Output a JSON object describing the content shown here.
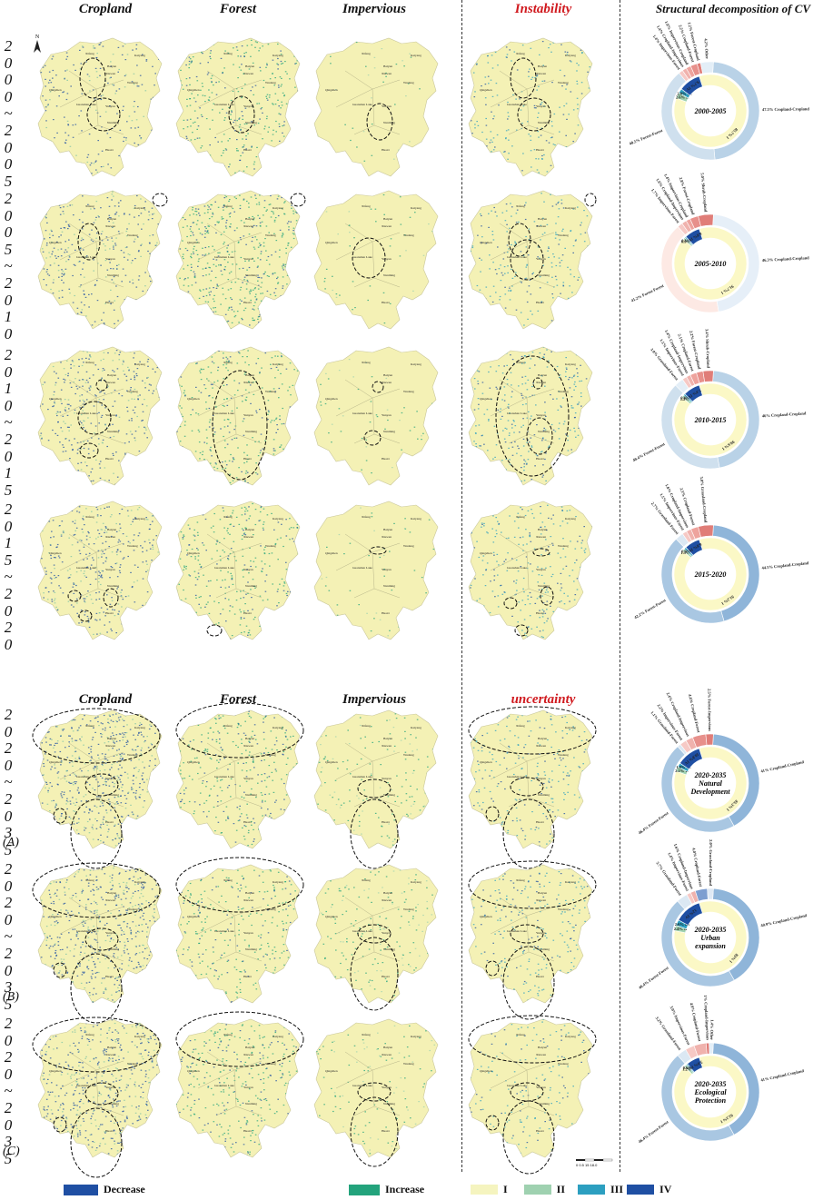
{
  "headers_top": {
    "cropland": "Cropland",
    "forest": "Forest",
    "impervious": "Impervious",
    "instability": "Instability",
    "structural": "Structural  decomposition  of  CV"
  },
  "headers_bottom": {
    "cropland": "Cropland",
    "forest": "Forest",
    "impervious": "Impervious",
    "uncertainty": "uncertainty"
  },
  "row_labels": [
    [
      "2",
      "0",
      "0",
      "0",
      "~",
      "2",
      "0",
      "0",
      "5"
    ],
    [
      "2",
      "0",
      "0",
      "5",
      "~",
      "2",
      "0",
      "1",
      "0"
    ],
    [
      "2",
      "0",
      "1",
      "0",
      "~",
      "2",
      "0",
      "1",
      "5"
    ],
    [
      "2",
      "0",
      "1",
      "5",
      "~",
      "2",
      "0",
      "2",
      "0"
    ],
    [
      "2",
      "0",
      "2",
      "0",
      "~",
      "2",
      "0",
      "3",
      "5"
    ],
    [
      "2",
      "0",
      "2",
      "0",
      "~",
      "2",
      "0",
      "3",
      "5"
    ],
    [
      "2",
      "0",
      "2",
      "0",
      "~",
      "2",
      "0",
      "3",
      "5"
    ]
  ],
  "scenario_letters": [
    "(A)",
    "(B)",
    "(C)"
  ],
  "map_places": [
    "Xifeng",
    "Baiyun",
    "Qingzhen",
    "Wudang",
    "Nanming",
    "Huaxi",
    "Guanshan Lake",
    "Yunyan",
    "Kaiyang",
    "Xiuwen"
  ],
  "north_arrow": "N",
  "scale_bar": "0  0.5  15  18.0",
  "colors": {
    "map_base": "#f4f1b5",
    "cropland_dec": "#1f3f9a",
    "forest_inc": "#23a37c",
    "class_I": "#f5f4bf",
    "class_II": "#9fd1b0",
    "class_III": "#2c9fc0",
    "class_IV": "#1f4fa3",
    "title_red": "#d0191e"
  },
  "donuts": [
    {
      "title": [
        "2000-2005"
      ],
      "outer": [
        {
          "label": "47.5%  Cropland-Cropland",
          "pct": 47.5,
          "color": "#b9d2e7"
        },
        {
          "label": "40.5%  Forest-Forest",
          "pct": 40.5,
          "color": "#cfe0ee"
        },
        {
          "label": "1.4%  Impervious-Forest",
          "pct": 1.4,
          "color": "#f6c9c5"
        },
        {
          "label": "1.4%  Cropland-Impervious",
          "pct": 1.4,
          "color": "#f0b2ad"
        },
        {
          "label": "1.6%  Impervious-Cropland",
          "pct": 1.6,
          "color": "#eea39d"
        },
        {
          "label": "2.2%  Cropland-Forest",
          "pct": 2.2,
          "color": "#e7908b"
        },
        {
          "label": "1.2%  Forest-Cropland",
          "pct": 1.2,
          "color": "#e07d78"
        },
        {
          "label": "4.2%  Other",
          "pct": 4.2,
          "color": "#e3eef7"
        }
      ],
      "inner": [
        {
          "label": "85.7%  I",
          "pct": 85.7,
          "color": "#fbf8c6"
        },
        {
          "label": "2.6%  II",
          "pct": 2.6,
          "color": "#9fd1b0"
        },
        {
          "label": "2.0%  III",
          "pct": 2.0,
          "color": "#2c9fc0"
        },
        {
          "label": "9.7%  IV",
          "pct": 9.7,
          "color": "#1f4fa3"
        }
      ]
    },
    {
      "title": [
        "2005-2010"
      ],
      "outer": [
        {
          "label": "46.3%  Cropland-Cropland",
          "pct": 46.3,
          "color": "#e6eff8"
        },
        {
          "label": "41.2%  Forest-Forest",
          "pct": 41.2,
          "color": "#fde9e4"
        },
        {
          "label": "1.7%  Impervious-Forest",
          "pct": 1.7,
          "color": "#f6c9c5"
        },
        {
          "label": "1.6%  Cropland-Impervious",
          "pct": 1.6,
          "color": "#f0b2ad"
        },
        {
          "label": "1.4%  Impervious-Cropland",
          "pct": 1.4,
          "color": "#eea39d"
        },
        {
          "label": "2.8%  Forest-Cropland",
          "pct": 2.8,
          "color": "#e7908b"
        },
        {
          "label": "5.0%  Shrub-Cropland",
          "pct": 5.0,
          "color": "#e07d78"
        }
      ],
      "inner": [
        {
          "label": "91.7%  I",
          "pct": 91.7,
          "color": "#fbf8c6"
        },
        {
          "label": "0.9%  II",
          "pct": 0.9,
          "color": "#9fd1b0"
        },
        {
          "label": "0.6%  III",
          "pct": 0.6,
          "color": "#2c9fc0"
        },
        {
          "label": "6.8%  IV",
          "pct": 6.8,
          "color": "#1f4fa3"
        }
      ]
    },
    {
      "title": [
        "2010-2015"
      ],
      "outer": [
        {
          "label": "46%  Cropland-Cropland",
          "pct": 46.0,
          "color": "#b9d2e7"
        },
        {
          "label": "40.4%  Forest-Forest",
          "pct": 40.4,
          "color": "#cfe0ee"
        },
        {
          "label": "3.0%  Grassland-Forest",
          "pct": 3.0,
          "color": "#e3eef7"
        },
        {
          "label": "1.5%  Impervious-Forest",
          "pct": 1.5,
          "color": "#f6c9c5"
        },
        {
          "label": "1.4%  Cropland-Impervious",
          "pct": 1.4,
          "color": "#f0b2ad"
        },
        {
          "label": "2.1%  Cropland-Forest",
          "pct": 2.1,
          "color": "#eea39d"
        },
        {
          "label": "2.2%  Forest-Cropland",
          "pct": 2.2,
          "color": "#e7908b"
        },
        {
          "label": "3.4%  Shrub-Cropland",
          "pct": 3.4,
          "color": "#e07d78"
        }
      ],
      "inner": [
        {
          "label": "90.6%  I",
          "pct": 90.6,
          "color": "#fbf8c6"
        },
        {
          "label": "1.2%  II",
          "pct": 1.2,
          "color": "#9fd1b0"
        },
        {
          "label": "0.8%  III",
          "pct": 0.8,
          "color": "#2c9fc0"
        },
        {
          "label": "7.4%  IV",
          "pct": 7.4,
          "color": "#1f4fa3"
        }
      ]
    },
    {
      "title": [
        "2015-2020"
      ],
      "outer": [
        {
          "label": "44.5%  Cropland-Cropland",
          "pct": 44.5,
          "color": "#8fb5d9"
        },
        {
          "label": "42.2%  Forest-Forest",
          "pct": 42.2,
          "color": "#a9c7e2"
        },
        {
          "label": "2.7%  Grassland-Forest",
          "pct": 2.7,
          "color": "#dbe8f3"
        },
        {
          "label": "1.5%  Impervious-Forest",
          "pct": 1.5,
          "color": "#f6c9c5"
        },
        {
          "label": "1.6%  Cropland-Impervious",
          "pct": 1.6,
          "color": "#f0b2ad"
        },
        {
          "label": "2.5%  Cropland-Forest",
          "pct": 2.5,
          "color": "#eea39d"
        },
        {
          "label": "5.0%  Grassland-Cropland",
          "pct": 5.0,
          "color": "#e07d78"
        }
      ],
      "inner": [
        {
          "label": "91.2%  I",
          "pct": 91.2,
          "color": "#fbf8c6"
        },
        {
          "label": "1.1%  II",
          "pct": 1.1,
          "color": "#9fd1b0"
        },
        {
          "label": "0.9%  III",
          "pct": 0.9,
          "color": "#2c9fc0"
        },
        {
          "label": "6.8%  IV",
          "pct": 6.8,
          "color": "#1f4fa3"
        }
      ]
    },
    {
      "title": [
        "2020-2035",
        "Natural",
        "Development"
      ],
      "outer": [
        {
          "label": "41%  Cropland-Cropland",
          "pct": 41.0,
          "color": "#8fb5d9"
        },
        {
          "label": "46.4%  Forest-Forest",
          "pct": 46.4,
          "color": "#a9c7e2"
        },
        {
          "label": "1.1%  Grassland-Forest",
          "pct": 1.1,
          "color": "#dbe8f3"
        },
        {
          "label": "2.2%  Impervious-Forest",
          "pct": 2.2,
          "color": "#f6c9c5"
        },
        {
          "label": "2.4%  Cropland-Impervious",
          "pct": 2.4,
          "color": "#f0b2ad"
        },
        {
          "label": "4.4%  Cropland-Forest",
          "pct": 4.4,
          "color": "#e7908b"
        },
        {
          "label": "2.5%  Forest-Impervious",
          "pct": 2.5,
          "color": "#e07d78"
        }
      ],
      "inner": [
        {
          "label": "85.3%  I",
          "pct": 85.3,
          "color": "#fbf8c6"
        },
        {
          "label": "2.1%  II",
          "pct": 2.1,
          "color": "#9fd1b0"
        },
        {
          "label": "1.8%  III",
          "pct": 1.8,
          "color": "#2c9fc0"
        },
        {
          "label": "10.8%  IV",
          "pct": 10.8,
          "color": "#1f4fa3"
        }
      ]
    },
    {
      "title": [
        "2020-2035",
        "Urban",
        "expansion"
      ],
      "outer": [
        {
          "label": "40.9%  Cropland-Cropland",
          "pct": 40.9,
          "color": "#8fb5d9"
        },
        {
          "label": "46.4%  Forest-Forest",
          "pct": 46.4,
          "color": "#a9c7e2"
        },
        {
          "label": "3.7%  Grassland-Forest",
          "pct": 3.7,
          "color": "#dbe8f3"
        },
        {
          "label": "1.4%  Impervious-Forest",
          "pct": 1.4,
          "color": "#f6c9c5"
        },
        {
          "label": "1.6%  Cropland-Impervious",
          "pct": 1.6,
          "color": "#f0b2ad"
        },
        {
          "label": "4.0%  Cropland-Forest",
          "pct": 4.0,
          "color": "#7d9ed0"
        },
        {
          "label": "2.0%  Grassland-Cropland",
          "pct": 2.0,
          "color": "#dfe9f4"
        }
      ],
      "inner": [
        {
          "label": "83%  I",
          "pct": 83.0,
          "color": "#fbf8c6"
        },
        {
          "label": "2.4%  II",
          "pct": 2.4,
          "color": "#9fd1b0"
        },
        {
          "label": "2.6%  III",
          "pct": 2.6,
          "color": "#2c9fc0"
        },
        {
          "label": "12%  IV",
          "pct": 12.0,
          "color": "#1f4fa3"
        }
      ]
    },
    {
      "title": [
        "2020-2035",
        "Ecological",
        "Protection"
      ],
      "outer": [
        {
          "label": "41%  Cropland-Cropland",
          "pct": 41.0,
          "color": "#8fb5d9"
        },
        {
          "label": "46.4%  Forest-Forest",
          "pct": 46.4,
          "color": "#a9c7e2"
        },
        {
          "label": "3.2%  Grassland-Forest",
          "pct": 3.2,
          "color": "#dbe8f3"
        },
        {
          "label": "3.0%  Impervious-Forest",
          "pct": 3.0,
          "color": "#f6c9c5"
        },
        {
          "label": "4.0%  Cropland-Forest",
          "pct": 4.0,
          "color": "#f0b2ad"
        },
        {
          "label": "1%  Cropland-Impervious",
          "pct": 1.0,
          "color": "#e07d78"
        },
        {
          "label": "1.4%  Other",
          "pct": 1.4,
          "color": "#e3eef7"
        }
      ],
      "inner": [
        {
          "label": "92.3%  I",
          "pct": 92.3,
          "color": "#fbf8c6"
        },
        {
          "label": "1.2%  II",
          "pct": 1.2,
          "color": "#9fd1b0"
        },
        {
          "label": "0.6%  III",
          "pct": 0.6,
          "color": "#2c9fc0"
        },
        {
          "label": "5.9%  IV",
          "pct": 5.9,
          "color": "#1f4fa3"
        }
      ]
    }
  ],
  "legend": {
    "decrease": "Decrease",
    "increase": "Increase",
    "class_I": "I",
    "class_II": "II",
    "class_III": "III",
    "class_IV": "IV"
  }
}
